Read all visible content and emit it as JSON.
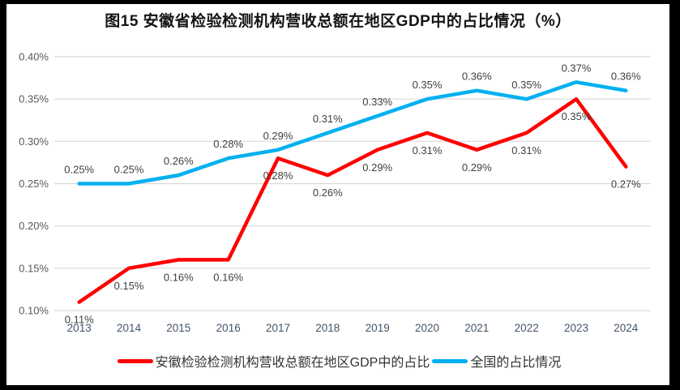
{
  "window": {
    "background_color": "#FFFFFF",
    "border_color": "#000000"
  },
  "chart_data": {
    "type": "line",
    "title": "图15 安徽省检验检测机构营收总额在地区GDP中的占比情况（%）",
    "xlabel": "",
    "ylabel": "",
    "categories": [
      "2013",
      "2014",
      "2015",
      "2016",
      "2017",
      "2018",
      "2019",
      "2020",
      "2021",
      "2022",
      "2023",
      "2024"
    ],
    "series": [
      {
        "name": "安徽检验检测机构营收总额在地区GDP中的占比",
        "color": "#FF0000",
        "values": [
          0.11,
          0.15,
          0.16,
          0.16,
          0.28,
          0.26,
          0.29,
          0.31,
          0.29,
          0.31,
          0.35,
          0.27
        ],
        "labels": [
          "0.11%",
          "0.15%",
          "0.16%",
          "0.16%",
          "0.28%",
          "0.26%",
          "0.29%",
          "0.31%",
          "0.29%",
          "0.31%",
          "0.35%",
          "0.27%"
        ],
        "label_side": "below"
      },
      {
        "name": "全国的占比情况",
        "color": "#00B0F0",
        "values": [
          0.25,
          0.25,
          0.26,
          0.28,
          0.29,
          0.31,
          0.33,
          0.35,
          0.36,
          0.35,
          0.37,
          0.36
        ],
        "labels": [
          "0.25%",
          "0.25%",
          "0.26%",
          "0.28%",
          "0.29%",
          "0.31%",
          "0.33%",
          "0.35%",
          "0.36%",
          "0.35%",
          "0.37%",
          "0.36%"
        ],
        "label_side": "above"
      }
    ],
    "ylim": [
      0.1,
      0.4
    ],
    "y_ticks": [
      {
        "value": 0.1,
        "label": "0.10%"
      },
      {
        "value": 0.15,
        "label": "0.15%"
      },
      {
        "value": 0.2,
        "label": "0.20%"
      },
      {
        "value": 0.25,
        "label": "0.25%"
      },
      {
        "value": 0.3,
        "label": "0.30%"
      },
      {
        "value": 0.35,
        "label": "0.35%"
      },
      {
        "value": 0.4,
        "label": "0.40%"
      }
    ],
    "grid": true,
    "legend_position": "bottom",
    "gridline_color": "#D9D9D9",
    "axis_label_color": "#595959",
    "category_label_color": "#44546A",
    "data_label_color": "#404040"
  }
}
